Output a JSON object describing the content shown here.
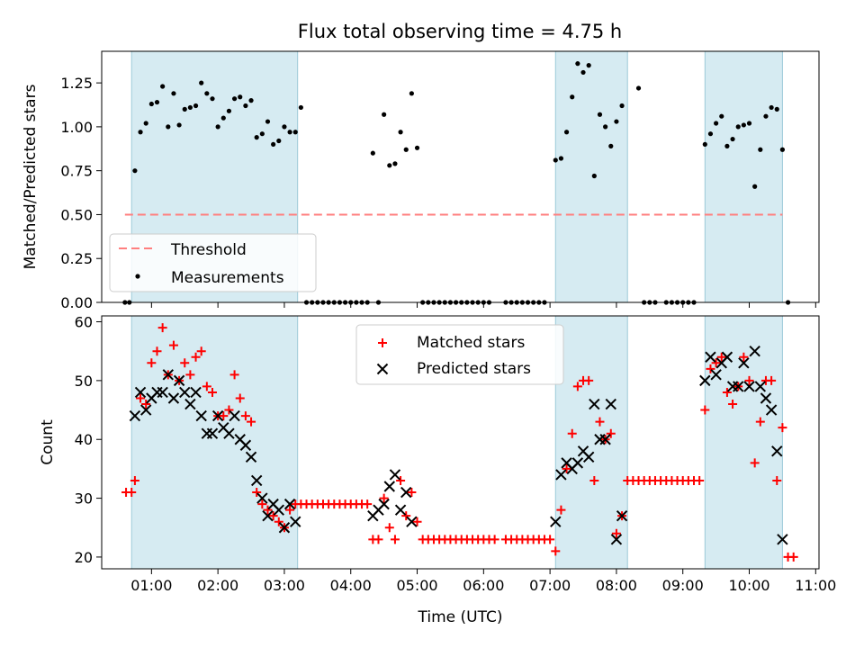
{
  "figure": {
    "title": "Flux total observing time = 4.75 h"
  },
  "chart_data": [
    {
      "type": "scatter",
      "panel": "top",
      "ylabel": "Matched/Predicted stars",
      "xlabel": "",
      "xlim": [
        "00:15",
        "11:03"
      ],
      "ylim": [
        0,
        1.43
      ],
      "yticks": [
        0.0,
        0.25,
        0.5,
        0.75,
        1.0,
        1.25
      ],
      "ytick_labels": [
        "0.00",
        "0.25",
        "0.50",
        "0.75",
        "1.00",
        "1.25"
      ],
      "shaded_intervals": [
        [
          "00:42",
          "03:12"
        ],
        [
          "07:05",
          "08:10"
        ],
        [
          "09:20",
          "10:30"
        ]
      ],
      "legend": {
        "position": "lower-left",
        "entries": [
          "Threshold",
          "Measurements"
        ]
      },
      "series": [
        {
          "name": "Threshold",
          "style": "dashed-line",
          "color": "#ff7f7f",
          "x": [
            "00:36",
            "10:30"
          ],
          "y": [
            0.5,
            0.5
          ]
        },
        {
          "name": "Measurements",
          "style": "dot",
          "color": "#000000",
          "x": [
            "00:36",
            "00:40",
            "00:45",
            "00:50",
            "00:55",
            "01:00",
            "01:05",
            "01:10",
            "01:15",
            "01:20",
            "01:25",
            "01:30",
            "01:35",
            "01:40",
            "01:45",
            "01:50",
            "01:55",
            "02:00",
            "02:05",
            "02:10",
            "02:15",
            "02:20",
            "02:25",
            "02:30",
            "02:35",
            "02:40",
            "02:45",
            "02:50",
            "02:55",
            "03:00",
            "03:05",
            "03:10",
            "03:15",
            "03:20",
            "03:25",
            "03:30",
            "03:35",
            "03:40",
            "03:45",
            "03:50",
            "03:55",
            "04:00",
            "04:05",
            "04:10",
            "04:15",
            "04:20",
            "04:25",
            "04:30",
            "04:35",
            "04:40",
            "04:45",
            "04:50",
            "04:55",
            "05:00",
            "05:05",
            "05:10",
            "05:15",
            "05:20",
            "05:25",
            "05:30",
            "05:35",
            "05:40",
            "05:45",
            "05:50",
            "05:55",
            "06:00",
            "06:05",
            "06:20",
            "06:25",
            "06:30",
            "06:35",
            "06:40",
            "06:45",
            "06:50",
            "06:55",
            "07:05",
            "07:10",
            "07:15",
            "07:20",
            "07:25",
            "07:30",
            "07:35",
            "07:40",
            "07:45",
            "07:50",
            "07:55",
            "08:00",
            "08:05",
            "08:20",
            "08:25",
            "08:30",
            "08:35",
            "08:45",
            "08:50",
            "08:55",
            "09:00",
            "09:05",
            "09:10",
            "09:20",
            "09:25",
            "09:30",
            "09:35",
            "09:40",
            "09:45",
            "09:50",
            "09:55",
            "10:00",
            "10:05",
            "10:10",
            "10:15",
            "10:20",
            "10:25",
            "10:30",
            "10:35"
          ],
          "y": [
            0.0,
            0.0,
            0.75,
            0.97,
            1.02,
            1.13,
            1.14,
            1.23,
            1.0,
            1.19,
            1.01,
            1.1,
            1.11,
            1.12,
            1.25,
            1.19,
            1.16,
            1.0,
            1.05,
            1.09,
            1.16,
            1.17,
            1.12,
            1.15,
            0.94,
            0.96,
            1.03,
            0.9,
            0.92,
            1.0,
            0.97,
            0.97,
            1.11,
            0.0,
            0.0,
            0.0,
            0.0,
            0.0,
            0.0,
            0.0,
            0.0,
            0.0,
            0.0,
            0.0,
            0.0,
            0.85,
            0.0,
            1.07,
            0.78,
            0.79,
            0.97,
            0.87,
            1.19,
            0.88,
            0.0,
            0.0,
            0.0,
            0.0,
            0.0,
            0.0,
            0.0,
            0.0,
            0.0,
            0.0,
            0.0,
            0.0,
            0.0,
            0.0,
            0.0,
            0.0,
            0.0,
            0.0,
            0.0,
            0.0,
            0.0,
            0.81,
            0.82,
            0.97,
            1.17,
            1.36,
            1.31,
            1.35,
            0.72,
            1.07,
            1.0,
            0.89,
            1.03,
            1.12,
            1.22,
            0.0,
            0.0,
            0.0,
            0.0,
            0.0,
            0.0,
            0.0,
            0.0,
            0.0,
            0.9,
            0.96,
            1.02,
            1.06,
            0.89,
            0.93,
            1.0,
            1.01,
            1.02,
            0.66,
            0.87,
            1.06,
            1.11,
            1.1,
            0.87,
            0.0
          ]
        }
      ]
    },
    {
      "type": "scatter",
      "panel": "bottom",
      "xlabel": "Time (UTC)",
      "ylabel": "Count",
      "xlim": [
        "00:15",
        "11:03"
      ],
      "ylim": [
        18,
        61
      ],
      "xticks": [
        "01:00",
        "02:00",
        "03:00",
        "04:00",
        "05:00",
        "06:00",
        "07:00",
        "08:00",
        "09:00",
        "10:00",
        "11:00"
      ],
      "yticks": [
        20,
        30,
        40,
        50,
        60
      ],
      "ytick_labels": [
        "20",
        "30",
        "40",
        "50",
        "60"
      ],
      "shaded_intervals": [
        [
          "00:42",
          "03:12"
        ],
        [
          "07:05",
          "08:10"
        ],
        [
          "09:20",
          "10:30"
        ]
      ],
      "legend": {
        "position": "top-center",
        "entries": [
          "Matched stars",
          "Predicted stars"
        ]
      },
      "series": [
        {
          "name": "Matched stars",
          "marker": "plus",
          "color": "#ff0000",
          "points": [
            [
              "00:37",
              31
            ],
            [
              "00:42",
              31
            ],
            [
              "00:45",
              33
            ],
            [
              "00:50",
              47
            ],
            [
              "00:55",
              46
            ],
            [
              "01:00",
              53
            ],
            [
              "01:05",
              55
            ],
            [
              "01:10",
              59
            ],
            [
              "01:15",
              51
            ],
            [
              "01:20",
              56
            ],
            [
              "01:25",
              50
            ],
            [
              "01:30",
              53
            ],
            [
              "01:35",
              51
            ],
            [
              "01:40",
              54
            ],
            [
              "01:45",
              55
            ],
            [
              "01:50",
              49
            ],
            [
              "01:55",
              48
            ],
            [
              "02:00",
              44
            ],
            [
              "02:05",
              44
            ],
            [
              "02:10",
              45
            ],
            [
              "02:15",
              51
            ],
            [
              "02:20",
              47
            ],
            [
              "02:25",
              44
            ],
            [
              "02:30",
              43
            ],
            [
              "02:35",
              31
            ],
            [
              "02:40",
              29
            ],
            [
              "02:45",
              28
            ],
            [
              "02:50",
              27
            ],
            [
              "02:55",
              26
            ],
            [
              "03:00",
              25
            ],
            [
              "03:05",
              28
            ],
            [
              "03:10",
              29
            ],
            [
              "03:15",
              29
            ],
            [
              "03:20",
              29
            ],
            [
              "03:25",
              29
            ],
            [
              "03:30",
              29
            ],
            [
              "03:35",
              29
            ],
            [
              "03:40",
              29
            ],
            [
              "03:45",
              29
            ],
            [
              "03:50",
              29
            ],
            [
              "03:55",
              29
            ],
            [
              "04:00",
              29
            ],
            [
              "04:05",
              29
            ],
            [
              "04:10",
              29
            ],
            [
              "04:15",
              29
            ],
            [
              "04:20",
              23
            ],
            [
              "04:25",
              23
            ],
            [
              "04:30",
              30
            ],
            [
              "04:35",
              25
            ],
            [
              "04:40",
              23
            ],
            [
              "04:45",
              33
            ],
            [
              "04:50",
              27
            ],
            [
              "04:55",
              31
            ],
            [
              "05:00",
              26
            ],
            [
              "05:05",
              23
            ],
            [
              "05:10",
              23
            ],
            [
              "05:15",
              23
            ],
            [
              "05:20",
              23
            ],
            [
              "05:25",
              23
            ],
            [
              "05:30",
              23
            ],
            [
              "05:35",
              23
            ],
            [
              "05:40",
              23
            ],
            [
              "05:45",
              23
            ],
            [
              "05:50",
              23
            ],
            [
              "05:55",
              23
            ],
            [
              "06:00",
              23
            ],
            [
              "06:05",
              23
            ],
            [
              "06:10",
              23
            ],
            [
              "06:20",
              23
            ],
            [
              "06:25",
              23
            ],
            [
              "06:30",
              23
            ],
            [
              "06:35",
              23
            ],
            [
              "06:40",
              23
            ],
            [
              "06:45",
              23
            ],
            [
              "06:50",
              23
            ],
            [
              "06:55",
              23
            ],
            [
              "07:00",
              23
            ],
            [
              "07:05",
              21
            ],
            [
              "07:10",
              28
            ],
            [
              "07:15",
              35
            ],
            [
              "07:20",
              41
            ],
            [
              "07:25",
              49
            ],
            [
              "07:30",
              50
            ],
            [
              "07:35",
              50
            ],
            [
              "07:40",
              33
            ],
            [
              "07:45",
              43
            ],
            [
              "07:50",
              40
            ],
            [
              "07:55",
              41
            ],
            [
              "08:00",
              24
            ],
            [
              "08:05",
              27
            ],
            [
              "08:10",
              33
            ],
            [
              "08:15",
              33
            ],
            [
              "08:20",
              33
            ],
            [
              "08:25",
              33
            ],
            [
              "08:30",
              33
            ],
            [
              "08:35",
              33
            ],
            [
              "08:40",
              33
            ],
            [
              "08:45",
              33
            ],
            [
              "08:50",
              33
            ],
            [
              "08:55",
              33
            ],
            [
              "09:00",
              33
            ],
            [
              "09:05",
              33
            ],
            [
              "09:10",
              33
            ],
            [
              "09:15",
              33
            ],
            [
              "09:20",
              45
            ],
            [
              "09:25",
              52
            ],
            [
              "09:30",
              53
            ],
            [
              "09:35",
              54
            ],
            [
              "09:40",
              48
            ],
            [
              "09:45",
              46
            ],
            [
              "09:50",
              49
            ],
            [
              "09:55",
              54
            ],
            [
              "10:00",
              50
            ],
            [
              "10:05",
              36
            ],
            [
              "10:10",
              43
            ],
            [
              "10:15",
              50
            ],
            [
              "10:20",
              50
            ],
            [
              "10:25",
              33
            ],
            [
              "10:30",
              42
            ],
            [
              "10:35",
              20
            ],
            [
              "10:40",
              20
            ]
          ]
        },
        {
          "name": "Predicted stars",
          "marker": "x",
          "color": "#000000",
          "points": [
            [
              "00:45",
              44
            ],
            [
              "00:50",
              48
            ],
            [
              "00:55",
              45
            ],
            [
              "01:00",
              47
            ],
            [
              "01:05",
              48
            ],
            [
              "01:10",
              48
            ],
            [
              "01:15",
              51
            ],
            [
              "01:20",
              47
            ],
            [
              "01:25",
              50
            ],
            [
              "01:30",
              48
            ],
            [
              "01:35",
              46
            ],
            [
              "01:40",
              48
            ],
            [
              "01:45",
              44
            ],
            [
              "01:50",
              41
            ],
            [
              "01:55",
              41
            ],
            [
              "02:00",
              44
            ],
            [
              "02:05",
              42
            ],
            [
              "02:10",
              41
            ],
            [
              "02:15",
              44
            ],
            [
              "02:20",
              40
            ],
            [
              "02:25",
              39
            ],
            [
              "02:30",
              37
            ],
            [
              "02:35",
              33
            ],
            [
              "02:40",
              30
            ],
            [
              "02:45",
              27
            ],
            [
              "02:50",
              29
            ],
            [
              "02:55",
              28
            ],
            [
              "03:00",
              25
            ],
            [
              "03:05",
              29
            ],
            [
              "03:10",
              26
            ],
            [
              "04:20",
              27
            ],
            [
              "04:25",
              28
            ],
            [
              "04:30",
              29
            ],
            [
              "04:35",
              32
            ],
            [
              "04:40",
              34
            ],
            [
              "04:45",
              28
            ],
            [
              "04:50",
              31
            ],
            [
              "04:55",
              26
            ],
            [
              "07:05",
              26
            ],
            [
              "07:10",
              34
            ],
            [
              "07:15",
              36
            ],
            [
              "07:20",
              35
            ],
            [
              "07:25",
              36
            ],
            [
              "07:30",
              38
            ],
            [
              "07:35",
              37
            ],
            [
              "07:40",
              46
            ],
            [
              "07:45",
              40
            ],
            [
              "07:50",
              40
            ],
            [
              "07:55",
              46
            ],
            [
              "08:00",
              23
            ],
            [
              "08:05",
              27
            ],
            [
              "09:20",
              50
            ],
            [
              "09:25",
              54
            ],
            [
              "09:30",
              51
            ],
            [
              "09:35",
              53
            ],
            [
              "09:40",
              54
            ],
            [
              "09:45",
              49
            ],
            [
              "09:50",
              49
            ],
            [
              "09:55",
              53
            ],
            [
              "10:00",
              49
            ],
            [
              "10:05",
              55
            ],
            [
              "10:10",
              49
            ],
            [
              "10:15",
              47
            ],
            [
              "10:20",
              45
            ],
            [
              "10:25",
              38
            ],
            [
              "10:30",
              23
            ]
          ]
        }
      ]
    }
  ]
}
